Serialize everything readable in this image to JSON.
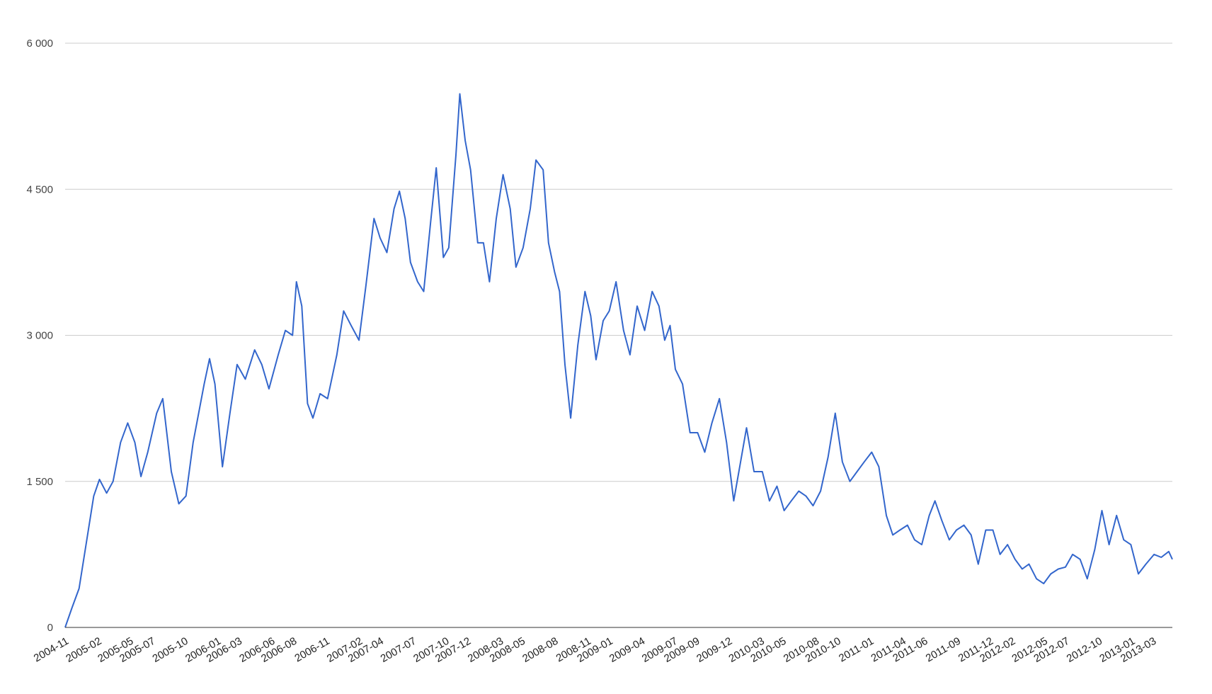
{
  "chart_data": {
    "type": "line",
    "title": "",
    "xlabel": "",
    "ylabel": "",
    "ylim": [
      0,
      6000
    ],
    "grid": true,
    "legend": "none",
    "line_color": "#3366cc",
    "grid_color": "#cccccc",
    "y_ticks": [
      {
        "value": 0,
        "label": "0"
      },
      {
        "value": 1500,
        "label": "1 500"
      },
      {
        "value": 3000,
        "label": "3 000"
      },
      {
        "value": 4500,
        "label": "4 500"
      },
      {
        "value": 6000,
        "label": "6 000"
      }
    ],
    "x_ticks": [
      {
        "value": "2004-11",
        "label": "2004-11"
      },
      {
        "value": "2005-02",
        "label": "2005-02"
      },
      {
        "value": "2005-05",
        "label": "2005-05"
      },
      {
        "value": "2005-07",
        "label": "2005-07"
      },
      {
        "value": "2005-10",
        "label": "2005-10"
      },
      {
        "value": "2006-01",
        "label": "2006-01"
      },
      {
        "value": "2006-03",
        "label": "2006-03"
      },
      {
        "value": "2006-06",
        "label": "2006-06"
      },
      {
        "value": "2006-08",
        "label": "2006-08"
      },
      {
        "value": "2006-11",
        "label": "2006-11"
      },
      {
        "value": "2007-02",
        "label": "2007-02"
      },
      {
        "value": "2007-04",
        "label": "2007-04"
      },
      {
        "value": "2007-07",
        "label": "2007-07"
      },
      {
        "value": "2007-10",
        "label": "2007-10"
      },
      {
        "value": "2007-12",
        "label": "2007-12"
      },
      {
        "value": "2008-03",
        "label": "2008-03"
      },
      {
        "value": "2008-05",
        "label": "2008-05"
      },
      {
        "value": "2008-08",
        "label": "2008-08"
      },
      {
        "value": "2008-11",
        "label": "2008-11"
      },
      {
        "value": "2009-01",
        "label": "2009-01"
      },
      {
        "value": "2009-04",
        "label": "2009-04"
      },
      {
        "value": "2009-07",
        "label": "2009-07"
      },
      {
        "value": "2009-09",
        "label": "2009-09"
      },
      {
        "value": "2009-12",
        "label": "2009-12"
      },
      {
        "value": "2010-03",
        "label": "2010-03"
      },
      {
        "value": "2010-05",
        "label": "2010-05"
      },
      {
        "value": "2010-08",
        "label": "2010-08"
      },
      {
        "value": "2010-10",
        "label": "2010-10"
      },
      {
        "value": "2011-01",
        "label": "2011-01"
      },
      {
        "value": "2011-04",
        "label": "2011-04"
      },
      {
        "value": "2011-06",
        "label": "2011-06"
      },
      {
        "value": "2011-09",
        "label": "2011-09"
      },
      {
        "value": "2011-12",
        "label": "2011-12"
      },
      {
        "value": "2012-02",
        "label": "2012-02"
      },
      {
        "value": "2012-05",
        "label": "2012-05"
      },
      {
        "value": "2012-07",
        "label": "2012-07"
      },
      {
        "value": "2012-10",
        "label": "2012-10"
      },
      {
        "value": "2013-01",
        "label": "2013-01"
      },
      {
        "value": "2013-03",
        "label": "2013-03"
      }
    ],
    "xlim": [
      "2004-11-01",
      "2013-04-25"
    ],
    "series": [
      {
        "points": [
          [
            "2004-11-01",
            0
          ],
          [
            "2004-11-20",
            200
          ],
          [
            "2004-12-10",
            400
          ],
          [
            "2005-01-05",
            1000
          ],
          [
            "2005-01-20",
            1350
          ],
          [
            "2005-02-05",
            1520
          ],
          [
            "2005-02-25",
            1380
          ],
          [
            "2005-03-15",
            1500
          ],
          [
            "2005-04-05",
            1900
          ],
          [
            "2005-04-25",
            2100
          ],
          [
            "2005-05-15",
            1900
          ],
          [
            "2005-06-01",
            1550
          ],
          [
            "2005-06-20",
            1800
          ],
          [
            "2005-07-15",
            2200
          ],
          [
            "2005-08-01",
            2350
          ],
          [
            "2005-08-25",
            1600
          ],
          [
            "2005-09-15",
            1270
          ],
          [
            "2005-10-05",
            1350
          ],
          [
            "2005-10-25",
            1900
          ],
          [
            "2005-11-25",
            2500
          ],
          [
            "2005-12-10",
            2760
          ],
          [
            "2005-12-25",
            2500
          ],
          [
            "2006-01-15",
            1650
          ],
          [
            "2006-02-05",
            2200
          ],
          [
            "2006-02-25",
            2700
          ],
          [
            "2006-03-20",
            2550
          ],
          [
            "2006-04-15",
            2850
          ],
          [
            "2006-05-05",
            2700
          ],
          [
            "2006-05-25",
            2450
          ],
          [
            "2006-06-20",
            2800
          ],
          [
            "2006-07-10",
            3050
          ],
          [
            "2006-07-30",
            3000
          ],
          [
            "2006-08-10",
            3550
          ],
          [
            "2006-08-25",
            3300
          ],
          [
            "2006-09-10",
            2300
          ],
          [
            "2006-09-25",
            2150
          ],
          [
            "2006-10-15",
            2400
          ],
          [
            "2006-11-05",
            2350
          ],
          [
            "2006-12-01",
            2800
          ],
          [
            "2006-12-20",
            3250
          ],
          [
            "2007-01-10",
            3100
          ],
          [
            "2007-02-01",
            2950
          ],
          [
            "2007-02-20",
            3500
          ],
          [
            "2007-03-15",
            4200
          ],
          [
            "2007-04-01",
            4000
          ],
          [
            "2007-04-20",
            3850
          ],
          [
            "2007-05-10",
            4300
          ],
          [
            "2007-05-25",
            4480
          ],
          [
            "2007-06-10",
            4200
          ],
          [
            "2007-06-25",
            3750
          ],
          [
            "2007-07-15",
            3550
          ],
          [
            "2007-08-01",
            3450
          ],
          [
            "2007-08-20",
            4150
          ],
          [
            "2007-09-05",
            4720
          ],
          [
            "2007-09-25",
            3800
          ],
          [
            "2007-10-10",
            3900
          ],
          [
            "2007-10-30",
            4850
          ],
          [
            "2007-11-10",
            5480
          ],
          [
            "2007-11-25",
            5000
          ],
          [
            "2007-12-10",
            4700
          ],
          [
            "2007-12-30",
            3950
          ],
          [
            "2008-01-15",
            3950
          ],
          [
            "2008-02-01",
            3550
          ],
          [
            "2008-02-20",
            4200
          ],
          [
            "2008-03-10",
            4650
          ],
          [
            "2008-03-30",
            4300
          ],
          [
            "2008-04-15",
            3700
          ],
          [
            "2008-05-05",
            3900
          ],
          [
            "2008-05-25",
            4300
          ],
          [
            "2008-06-10",
            4800
          ],
          [
            "2008-06-30",
            4700
          ],
          [
            "2008-07-15",
            3950
          ],
          [
            "2008-08-01",
            3650
          ],
          [
            "2008-08-15",
            3450
          ],
          [
            "2008-08-30",
            2700
          ],
          [
            "2008-09-15",
            2150
          ],
          [
            "2008-10-05",
            2900
          ],
          [
            "2008-10-25",
            3450
          ],
          [
            "2008-11-10",
            3200
          ],
          [
            "2008-11-25",
            2750
          ],
          [
            "2008-12-15",
            3150
          ],
          [
            "2009-01-01",
            3250
          ],
          [
            "2009-01-20",
            3550
          ],
          [
            "2009-02-10",
            3050
          ],
          [
            "2009-02-28",
            2800
          ],
          [
            "2009-03-20",
            3300
          ],
          [
            "2009-04-10",
            3050
          ],
          [
            "2009-05-01",
            3450
          ],
          [
            "2009-05-20",
            3300
          ],
          [
            "2009-06-05",
            2950
          ],
          [
            "2009-06-20",
            3100
          ],
          [
            "2009-07-05",
            2650
          ],
          [
            "2009-07-25",
            2500
          ],
          [
            "2009-08-15",
            2000
          ],
          [
            "2009-09-05",
            2000
          ],
          [
            "2009-09-25",
            1800
          ],
          [
            "2009-10-15",
            2100
          ],
          [
            "2009-11-05",
            2350
          ],
          [
            "2009-11-25",
            1900
          ],
          [
            "2009-12-15",
            1300
          ],
          [
            "2010-01-01",
            1650
          ],
          [
            "2010-01-20",
            2050
          ],
          [
            "2010-02-10",
            1600
          ],
          [
            "2010-03-05",
            1600
          ],
          [
            "2010-03-25",
            1300
          ],
          [
            "2010-04-15",
            1450
          ],
          [
            "2010-05-05",
            1200
          ],
          [
            "2010-05-25",
            1300
          ],
          [
            "2010-06-15",
            1400
          ],
          [
            "2010-07-05",
            1350
          ],
          [
            "2010-07-25",
            1250
          ],
          [
            "2010-08-15",
            1400
          ],
          [
            "2010-09-05",
            1750
          ],
          [
            "2010-09-25",
            2200
          ],
          [
            "2010-10-15",
            1700
          ],
          [
            "2010-11-05",
            1500
          ],
          [
            "2010-11-25",
            1600
          ],
          [
            "2010-12-15",
            1700
          ],
          [
            "2011-01-05",
            1800
          ],
          [
            "2011-01-25",
            1650
          ],
          [
            "2011-02-15",
            1150
          ],
          [
            "2011-03-05",
            950
          ],
          [
            "2011-03-25",
            1000
          ],
          [
            "2011-04-15",
            1050
          ],
          [
            "2011-05-05",
            900
          ],
          [
            "2011-05-25",
            850
          ],
          [
            "2011-06-15",
            1150
          ],
          [
            "2011-07-01",
            1300
          ],
          [
            "2011-07-20",
            1100
          ],
          [
            "2011-08-10",
            900
          ],
          [
            "2011-08-30",
            1000
          ],
          [
            "2011-09-20",
            1050
          ],
          [
            "2011-10-10",
            950
          ],
          [
            "2011-10-30",
            650
          ],
          [
            "2011-11-20",
            1000
          ],
          [
            "2011-12-10",
            1000
          ],
          [
            "2011-12-30",
            750
          ],
          [
            "2012-01-20",
            850
          ],
          [
            "2012-02-10",
            700
          ],
          [
            "2012-03-01",
            600
          ],
          [
            "2012-03-20",
            650
          ],
          [
            "2012-04-10",
            500
          ],
          [
            "2012-04-30",
            450
          ],
          [
            "2012-05-20",
            550
          ],
          [
            "2012-06-10",
            600
          ],
          [
            "2012-06-30",
            620
          ],
          [
            "2012-07-20",
            750
          ],
          [
            "2012-08-10",
            700
          ],
          [
            "2012-08-30",
            500
          ],
          [
            "2012-09-20",
            800
          ],
          [
            "2012-10-10",
            1200
          ],
          [
            "2012-10-30",
            850
          ],
          [
            "2012-11-20",
            1150
          ],
          [
            "2012-12-10",
            900
          ],
          [
            "2012-12-30",
            850
          ],
          [
            "2013-01-20",
            550
          ],
          [
            "2013-02-10",
            650
          ],
          [
            "2013-03-05",
            750
          ],
          [
            "2013-03-25",
            720
          ],
          [
            "2013-04-15",
            780
          ],
          [
            "2013-04-25",
            700
          ]
        ]
      }
    ]
  }
}
